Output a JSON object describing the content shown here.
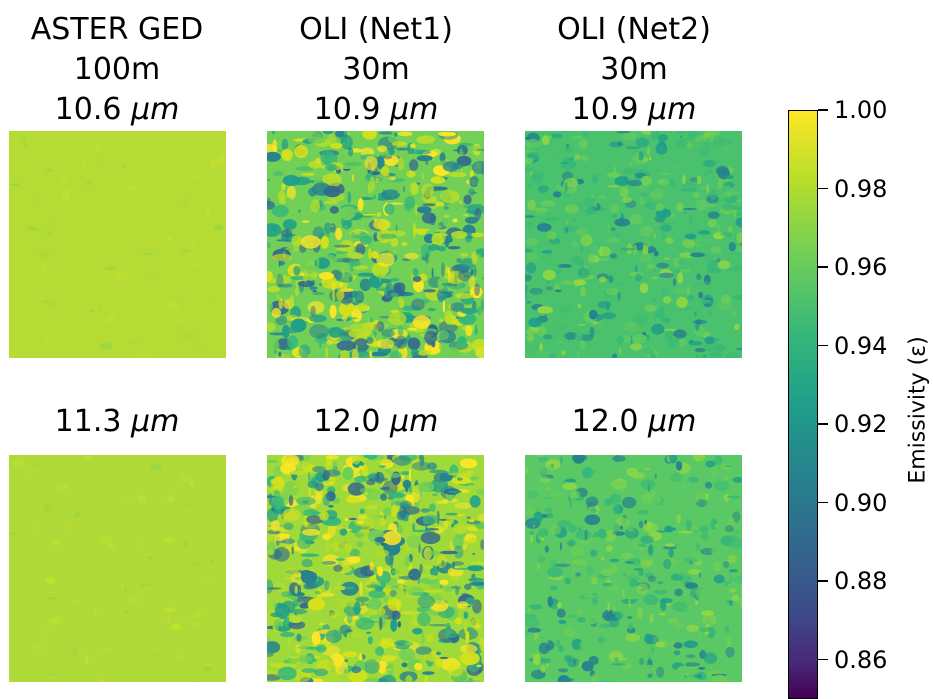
{
  "columns": [
    {
      "name": "ASTER GED",
      "resolution": "100m",
      "wavelength_top": "10.6",
      "wavelength_bottom": "11.3"
    },
    {
      "name": "OLI (Net1)",
      "resolution": "30m",
      "wavelength_top": "10.9",
      "wavelength_bottom": "12.0"
    },
    {
      "name": "OLI (Net2)",
      "resolution": "30m",
      "wavelength_top": "10.9",
      "wavelength_bottom": "12.0"
    }
  ],
  "unit_symbol": "μm",
  "colorbar": {
    "label": "Emissivity (ε)",
    "colormap": "viridis",
    "range": [
      0.85,
      1.0
    ],
    "ticks": [
      "1.00",
      "0.98",
      "0.96",
      "0.94",
      "0.92",
      "0.90",
      "0.88",
      "0.86"
    ]
  },
  "panels": [
    {
      "id": "aster-top",
      "dominant_color": "#b5dc35",
      "variation": "low"
    },
    {
      "id": "net1-top",
      "dominant_color": "#73d056",
      "variation": "high"
    },
    {
      "id": "net2-top",
      "dominant_color": "#4ac16d",
      "variation": "medium"
    },
    {
      "id": "aster-bottom",
      "dominant_color": "#b0da38",
      "variation": "low"
    },
    {
      "id": "net1-bottom",
      "dominant_color": "#9fda3a",
      "variation": "high"
    },
    {
      "id": "net2-bottom",
      "dominant_color": "#5ac864",
      "variation": "medium"
    }
  ]
}
